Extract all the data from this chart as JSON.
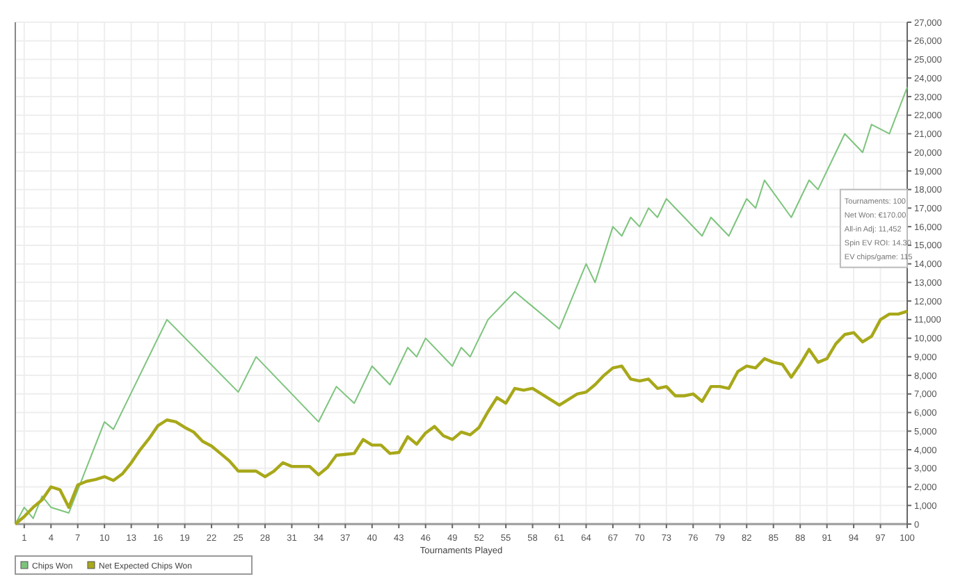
{
  "chart_data": {
    "type": "line",
    "xlabel": "Tournaments Played",
    "xlim": [
      0,
      100
    ],
    "xticks": [
      1,
      4,
      7,
      10,
      13,
      16,
      19,
      22,
      25,
      28,
      31,
      34,
      37,
      40,
      43,
      46,
      49,
      52,
      55,
      58,
      61,
      64,
      67,
      70,
      73,
      76,
      79,
      82,
      85,
      88,
      91,
      94,
      97,
      100
    ],
    "ylim": [
      0,
      27000
    ],
    "yticks": [
      0,
      {
        "value": 1000,
        "label": "1,000"
      },
      {
        "value": 2000,
        "label": "2,000"
      },
      {
        "value": 3000,
        "label": "3,000"
      },
      {
        "value": 4000,
        "label": "4,000"
      },
      {
        "value": 5000,
        "label": "5,000"
      },
      {
        "value": 6000,
        "label": "6,000"
      },
      {
        "value": 7000,
        "label": "7,000"
      },
      {
        "value": 8000,
        "label": "8,000"
      },
      {
        "value": 9000,
        "label": "9,000"
      },
      {
        "value": 10000,
        "label": "10,000"
      },
      {
        "value": 11000,
        "label": "11,000"
      },
      {
        "value": 12000,
        "label": "12,000"
      },
      {
        "value": 13000,
        "label": "13,000"
      },
      {
        "value": 14000,
        "label": "14,000"
      },
      {
        "value": 15000,
        "label": "15,000"
      },
      {
        "value": 16000,
        "label": "16,000"
      },
      {
        "value": 17000,
        "label": "17,000"
      },
      {
        "value": 18000,
        "label": "18,000"
      },
      {
        "value": 19000,
        "label": "19,000"
      },
      {
        "value": 20000,
        "label": "20,000"
      },
      {
        "value": 21000,
        "label": "21,000"
      },
      {
        "value": 22000,
        "label": "22,000"
      },
      {
        "value": 23000,
        "label": "23,000"
      },
      {
        "value": 24000,
        "label": "24,000"
      },
      {
        "value": 25000,
        "label": "25,000"
      },
      {
        "value": 26000,
        "label": "26,000"
      },
      {
        "value": 27000,
        "label": "27,000"
      }
    ],
    "grid": true,
    "legend": "bottom left",
    "marker": "none",
    "line_style": "solid",
    "annotations": [
      "Tournaments: 100",
      "Net Won: €170.00",
      "All-in Adj: 11,452",
      "Spin EV ROI: 14.30",
      "EV chips/game: 115"
    ],
    "series": [
      {
        "name": "Chips Won",
        "color": "#7cc47c",
        "x": [
          0,
          1,
          2,
          3,
          4,
          6,
          10,
          11,
          17,
          25,
          27,
          34,
          36,
          38,
          40,
          42,
          44,
          45,
          46,
          49,
          50,
          51,
          53,
          56,
          61,
          64,
          65,
          67,
          68,
          69,
          70,
          71,
          72,
          73,
          77,
          78,
          80,
          82,
          83,
          84,
          87,
          89,
          90,
          93,
          95,
          96,
          98,
          100
        ],
        "values": [
          0,
          900,
          300,
          1500,
          900,
          600,
          5500,
          5100,
          11000,
          7100,
          9000,
          5500,
          7400,
          6500,
          8500,
          7500,
          9500,
          9000,
          10000,
          8500,
          9500,
          9000,
          11000,
          12500,
          10500,
          14000,
          13000,
          16000,
          15500,
          16500,
          16000,
          17000,
          16500,
          17500,
          15500,
          16500,
          15500,
          17500,
          17000,
          18500,
          16500,
          18500,
          18000,
          21000,
          20000,
          21500,
          21000,
          23500
        ]
      },
      {
        "name": "Net Expected Chips Won",
        "color": "#a8a81a",
        "x": [
          0,
          1,
          2,
          3,
          4,
          5,
          6,
          7,
          8,
          9,
          10,
          11,
          12,
          13,
          14,
          15,
          16,
          17,
          18,
          19,
          20,
          21,
          22,
          23,
          24,
          25,
          26,
          27,
          28,
          29,
          30,
          31,
          32,
          33,
          34,
          35,
          36,
          37,
          38,
          39,
          40,
          41,
          42,
          43,
          44,
          45,
          46,
          47,
          48,
          49,
          50,
          51,
          52,
          53,
          54,
          55,
          56,
          57,
          58,
          59,
          60,
          61,
          62,
          63,
          64,
          65,
          66,
          67,
          68,
          69,
          70,
          71,
          72,
          73,
          74,
          75,
          76,
          77,
          78,
          79,
          80,
          81,
          82,
          83,
          84,
          85,
          86,
          87,
          88,
          89,
          90,
          91,
          92,
          93,
          94,
          95,
          96,
          97,
          98,
          99,
          100
        ],
        "values": [
          0,
          400,
          900,
          1300,
          2000,
          1850,
          900,
          2100,
          2300,
          2400,
          2550,
          2350,
          2700,
          3300,
          4000,
          4600,
          5300,
          5600,
          5500,
          5200,
          4950,
          4450,
          4200,
          3800,
          3400,
          2850,
          2850,
          2850,
          2550,
          2850,
          3300,
          3100,
          3100,
          3100,
          2650,
          3050,
          3700,
          3750,
          3800,
          4550,
          4250,
          4250,
          3800,
          3850,
          4700,
          4300,
          4900,
          5250,
          4750,
          4550,
          4950,
          4800,
          5200,
          6050,
          6800,
          6500,
          7300,
          7200,
          7300,
          7000,
          6700,
          6400,
          6700,
          7000,
          7100,
          7500,
          8000,
          8400,
          8500,
          7800,
          7700,
          7800,
          7300,
          7400,
          6900,
          6900,
          7000,
          6600,
          7400,
          7400,
          7300,
          8200,
          8500,
          8400,
          8900,
          8700,
          8600,
          7900,
          8600,
          9400,
          8700,
          8900,
          9700,
          10200,
          10300,
          9800,
          10100,
          11000,
          11300,
          11300,
          11450
        ]
      }
    ]
  }
}
